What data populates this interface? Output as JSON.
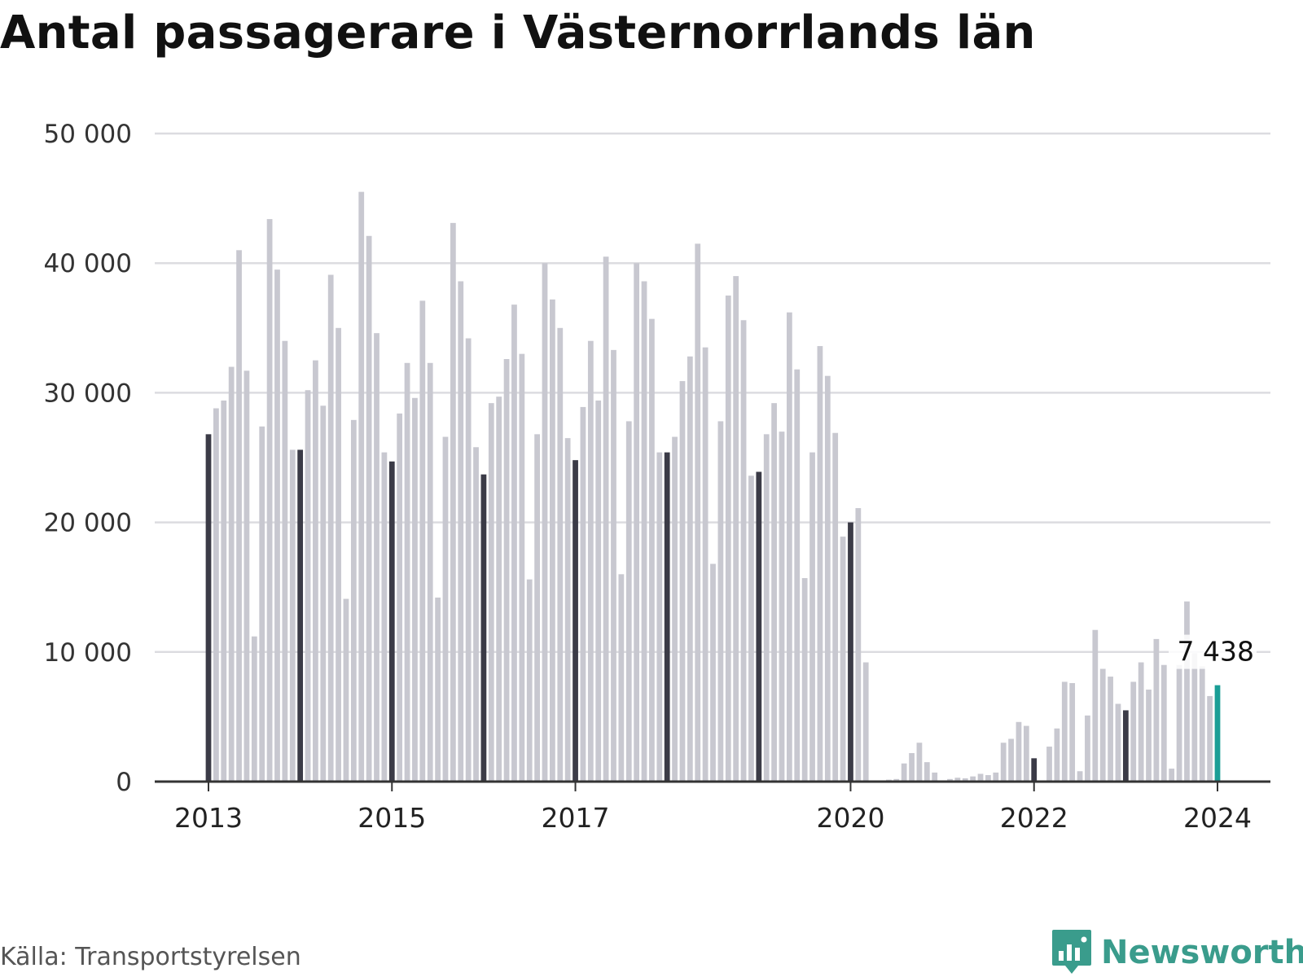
{
  "page": {
    "title": "Antal passagerare i Västernorrlands län",
    "source": "Källa: Transportstyrelsen",
    "brand": "Newsworthy"
  },
  "colors": {
    "bar": "#c8c8d0",
    "january": "#3b3b47",
    "highlight": "#1a9e96",
    "grid": "#dcdce0",
    "axis": "#333333",
    "brand": "#3a9c8c"
  },
  "icons": {
    "logo": "newsworthy-chart-bubble-icon"
  },
  "chart_data": {
    "type": "bar",
    "title": "Antal passagerare i Västernorrlands län",
    "xlabel": "",
    "ylabel": "",
    "ylim": [
      0,
      50000
    ],
    "yticks": [
      0,
      10000,
      20000,
      30000,
      40000,
      50000
    ],
    "ytick_labels": [
      "0",
      "10 000",
      "20 000",
      "30 000",
      "40 000",
      "50 000"
    ],
    "xtick_labels": [
      {
        "label": "2013",
        "index": 0
      },
      {
        "label": "2015",
        "index": 24
      },
      {
        "label": "2017",
        "index": 48
      },
      {
        "label": "2020",
        "index": 84
      },
      {
        "label": "2022",
        "index": 108
      },
      {
        "label": "2024",
        "index": 132
      }
    ],
    "grid": true,
    "start_period": "2013-01",
    "end_period": "2024-01",
    "highlight_label": "7 438",
    "series": [
      {
        "values": [
          26800,
          28800,
          29400,
          32000,
          41000,
          31700,
          11200,
          27400,
          43400,
          39500,
          34000,
          25600,
          25600,
          30200,
          32500,
          29000,
          39100,
          35000,
          14100,
          27900,
          45500,
          42100,
          34600,
          25400,
          24700,
          28400,
          32300,
          29600,
          37100,
          32300,
          14200,
          26600,
          43100,
          38600,
          34200,
          25800,
          23700,
          29200,
          29700,
          32600,
          36800,
          33000,
          15600,
          26800,
          40000,
          37200,
          35000,
          26500,
          24800,
          28900,
          34000,
          29400,
          40500,
          33300,
          16000,
          27800,
          40000,
          38600,
          35700,
          25400,
          25400,
          26600,
          30900,
          32800,
          41500,
          33500,
          16800,
          27800,
          37500,
          39000,
          35600,
          23600,
          23900,
          26800,
          29200,
          27000,
          36200,
          31800,
          15700,
          25400,
          33600,
          31300,
          26900,
          18900,
          20000,
          21100,
          9200,
          0,
          0,
          150,
          200,
          1400,
          2200,
          3000,
          1500,
          700,
          0,
          200,
          300,
          250,
          400,
          600,
          500,
          700,
          3000,
          3300,
          4600,
          4300,
          1800,
          0,
          2700,
          4100,
          7700,
          7600,
          800,
          5100,
          11700,
          8700,
          8100,
          6000,
          5500,
          7700,
          9200,
          7100,
          11000,
          9000,
          1000,
          9000,
          13900,
          9900,
          8900,
          6600,
          7438
        ]
      }
    ]
  }
}
